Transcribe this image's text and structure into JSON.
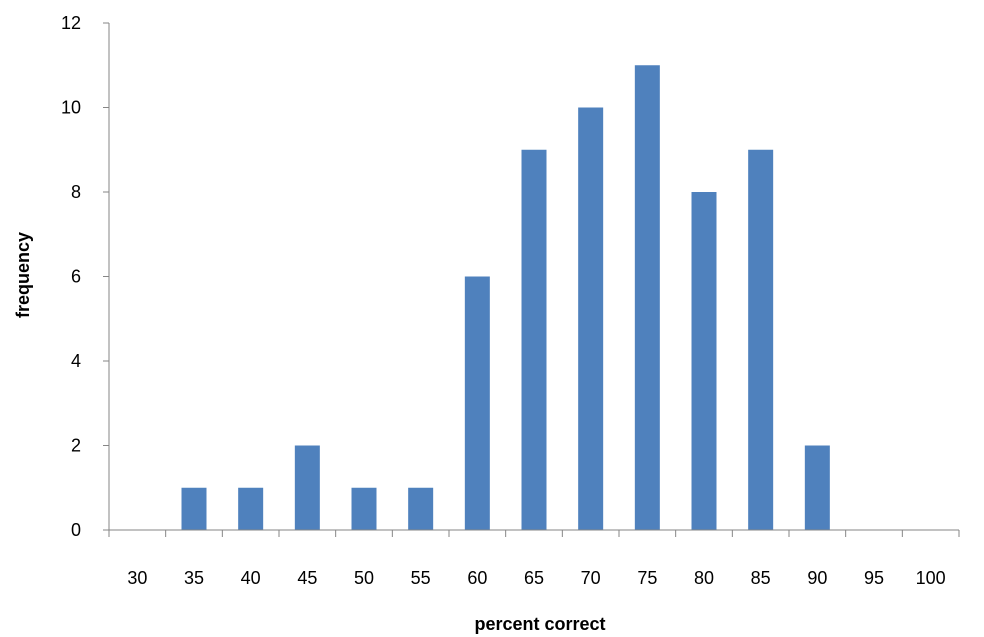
{
  "chart_data": {
    "type": "bar",
    "title": "",
    "xlabel": "percent correct",
    "ylabel": "frequency",
    "categories": [
      "30",
      "35",
      "40",
      "45",
      "50",
      "55",
      "60",
      "65",
      "70",
      "75",
      "80",
      "85",
      "90",
      "95",
      "100"
    ],
    "values": [
      0,
      1,
      1,
      2,
      1,
      1,
      6,
      9,
      10,
      11,
      8,
      9,
      2,
      0,
      0
    ],
    "ylim": [
      0,
      12
    ],
    "yticks": [
      "0",
      "2",
      "4",
      "6",
      "8",
      "10",
      "12"
    ],
    "grid": false,
    "legend": "none",
    "bar_color": "#4F81BD",
    "axis_color": "#868686"
  }
}
